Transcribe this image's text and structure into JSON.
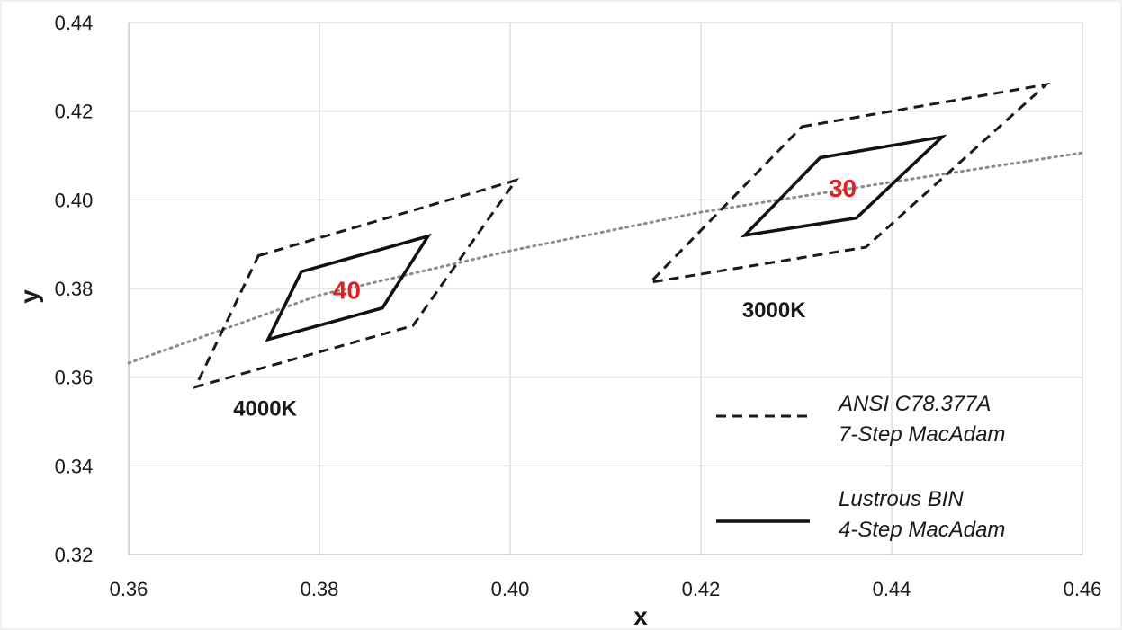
{
  "chart_data": {
    "type": "scatter",
    "xlabel": "x",
    "ylabel": "y",
    "xlim": [
      0.36,
      0.46
    ],
    "ylim": [
      0.32,
      0.44
    ],
    "x_ticks": [
      "0.36",
      "0.38",
      "0.40",
      "0.42",
      "0.44",
      "0.46"
    ],
    "y_ticks": [
      "0.32",
      "0.34",
      "0.36",
      "0.38",
      "0.40",
      "0.42",
      "0.44"
    ],
    "grid": true,
    "legend_position": "bottom-right",
    "legend": [
      {
        "style": "dashed",
        "line1": "ANSI C78.377A",
        "line2": "7-Step MacAdam"
      },
      {
        "style": "solid",
        "line1": "Lustrous BIN",
        "line2": "4-Step MacAdam"
      }
    ],
    "blackbody_locus": {
      "style": "dotted",
      "color": "#8c8c8c",
      "points": [
        [
          0.36,
          0.3632
        ],
        [
          0.38,
          0.3785
        ],
        [
          0.4,
          0.3885
        ],
        [
          0.42,
          0.3972
        ],
        [
          0.44,
          0.404
        ],
        [
          0.46,
          0.4106
        ]
      ]
    },
    "regions": [
      {
        "cct_label": "4000K",
        "bin_label": "40",
        "ansi_7step": [
          [
            0.3736,
            0.3874
          ],
          [
            0.4006,
            0.4044
          ],
          [
            0.3898,
            0.3716
          ],
          [
            0.367,
            0.3578
          ]
        ],
        "lustrous_4step": [
          [
            0.3781,
            0.3838
          ],
          [
            0.3914,
            0.3918
          ],
          [
            0.3866,
            0.3756
          ],
          [
            0.3746,
            0.3685
          ]
        ]
      },
      {
        "cct_label": "3000K",
        "bin_label": "30",
        "ansi_7step": [
          [
            0.4306,
            0.4165
          ],
          [
            0.4562,
            0.426
          ],
          [
            0.4373,
            0.3893
          ],
          [
            0.4147,
            0.3814
          ]
        ],
        "lustrous_4step": [
          [
            0.4325,
            0.4095
          ],
          [
            0.4453,
            0.4142
          ],
          [
            0.4363,
            0.3959
          ],
          [
            0.4246,
            0.392
          ]
        ]
      }
    ],
    "colors": {
      "grid": "#d4d4d4",
      "ansi_line": "#1a1a1a",
      "lustrous_line": "#111111",
      "bin_label": "#e01f26"
    }
  }
}
